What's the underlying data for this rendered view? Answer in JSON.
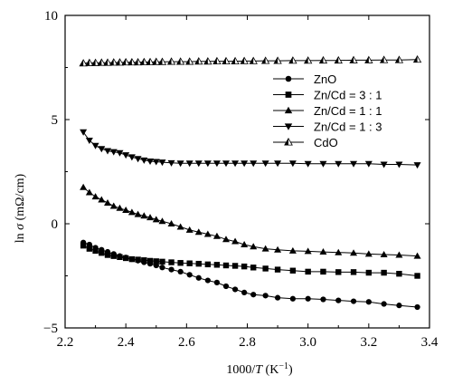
{
  "chart_data": {
    "type": "line",
    "ylabel": {
      "prefix": "ln ",
      "italic": "σ",
      "suffix": " (mΩ/cm)"
    },
    "xlabel": {
      "prefix": "1000/",
      "italic": "T",
      "suffix": " (K",
      "sup": "−1",
      "close": ")"
    },
    "xlim": [
      2.2,
      3.4
    ],
    "ylim": [
      -5,
      10
    ],
    "xticks": [
      2.2,
      2.4,
      2.6,
      2.8,
      3.0,
      3.2,
      3.4
    ],
    "xtick_labels": [
      "2.2",
      "2.4",
      "2.6",
      "2.8",
      "3.0",
      "3.2",
      "3.4"
    ],
    "yticks": [
      -5,
      0,
      5,
      10
    ],
    "ytick_labels": [
      "−5",
      "0",
      "5",
      "10"
    ],
    "grid": false,
    "legend_position": "upper-right",
    "colors": {
      "line": "#000000",
      "axes": "#000000",
      "background": "#ffffff"
    },
    "series": [
      {
        "name": "ZnO",
        "marker": "circle",
        "x": [
          2.26,
          2.28,
          2.3,
          2.32,
          2.34,
          2.36,
          2.38,
          2.4,
          2.42,
          2.44,
          2.46,
          2.48,
          2.5,
          2.52,
          2.55,
          2.58,
          2.61,
          2.64,
          2.67,
          2.7,
          2.73,
          2.76,
          2.79,
          2.82,
          2.86,
          2.9,
          2.95,
          3.0,
          3.05,
          3.1,
          3.15,
          3.2,
          3.25,
          3.3,
          3.36
        ],
        "y": [
          -0.9,
          -1.0,
          -1.15,
          -1.25,
          -1.35,
          -1.45,
          -1.55,
          -1.62,
          -1.7,
          -1.77,
          -1.85,
          -1.92,
          -2.0,
          -2.1,
          -2.2,
          -2.3,
          -2.45,
          -2.6,
          -2.72,
          -2.82,
          -3.0,
          -3.15,
          -3.3,
          -3.4,
          -3.45,
          -3.55,
          -3.6,
          -3.6,
          -3.63,
          -3.68,
          -3.72,
          -3.75,
          -3.85,
          -3.92,
          -4.0
        ]
      },
      {
        "name": "Zn/Cd = 3 : 1",
        "marker": "square",
        "x": [
          2.26,
          2.28,
          2.3,
          2.32,
          2.34,
          2.36,
          2.38,
          2.4,
          2.42,
          2.44,
          2.46,
          2.48,
          2.5,
          2.52,
          2.55,
          2.58,
          2.61,
          2.64,
          2.67,
          2.7,
          2.73,
          2.76,
          2.79,
          2.82,
          2.86,
          2.9,
          2.95,
          3.0,
          3.05,
          3.1,
          3.15,
          3.2,
          3.25,
          3.3,
          3.36
        ],
        "y": [
          -1.05,
          -1.2,
          -1.3,
          -1.4,
          -1.5,
          -1.55,
          -1.6,
          -1.65,
          -1.7,
          -1.72,
          -1.75,
          -1.78,
          -1.8,
          -1.82,
          -1.85,
          -1.88,
          -1.9,
          -1.92,
          -1.95,
          -1.97,
          -2.0,
          -2.02,
          -2.05,
          -2.1,
          -2.15,
          -2.2,
          -2.25,
          -2.3,
          -2.3,
          -2.32,
          -2.32,
          -2.35,
          -2.35,
          -2.4,
          -2.5
        ]
      },
      {
        "name": "Zn/Cd = 1 : 1",
        "marker": "triangle-up",
        "x": [
          2.26,
          2.28,
          2.3,
          2.32,
          2.34,
          2.36,
          2.38,
          2.4,
          2.42,
          2.44,
          2.46,
          2.48,
          2.5,
          2.52,
          2.55,
          2.58,
          2.61,
          2.64,
          2.67,
          2.7,
          2.73,
          2.76,
          2.79,
          2.82,
          2.86,
          2.9,
          2.95,
          3.0,
          3.05,
          3.1,
          3.15,
          3.2,
          3.25,
          3.3,
          3.36
        ],
        "y": [
          1.75,
          1.5,
          1.3,
          1.15,
          1.0,
          0.85,
          0.75,
          0.65,
          0.55,
          0.45,
          0.38,
          0.3,
          0.2,
          0.12,
          0.0,
          -0.15,
          -0.3,
          -0.4,
          -0.5,
          -0.6,
          -0.75,
          -0.85,
          -1.0,
          -1.1,
          -1.2,
          -1.25,
          -1.3,
          -1.32,
          -1.35,
          -1.38,
          -1.4,
          -1.45,
          -1.48,
          -1.5,
          -1.55
        ]
      },
      {
        "name": "Zn/Cd = 1 : 3",
        "marker": "triangle-down",
        "x": [
          2.26,
          2.28,
          2.3,
          2.32,
          2.34,
          2.36,
          2.38,
          2.4,
          2.42,
          2.44,
          2.46,
          2.48,
          2.5,
          2.52,
          2.55,
          2.58,
          2.61,
          2.64,
          2.67,
          2.7,
          2.73,
          2.76,
          2.79,
          2.82,
          2.86,
          2.9,
          2.95,
          3.0,
          3.05,
          3.1,
          3.15,
          3.2,
          3.25,
          3.3,
          3.36
        ],
        "y": [
          4.4,
          4.0,
          3.75,
          3.6,
          3.5,
          3.45,
          3.4,
          3.3,
          3.2,
          3.12,
          3.05,
          3.0,
          2.98,
          2.95,
          2.92,
          2.9,
          2.9,
          2.9,
          2.9,
          2.9,
          2.9,
          2.9,
          2.9,
          2.9,
          2.9,
          2.9,
          2.9,
          2.88,
          2.88,
          2.88,
          2.88,
          2.88,
          2.85,
          2.85,
          2.82
        ]
      },
      {
        "name": "CdO",
        "marker": "half-triangle",
        "x": [
          2.26,
          2.28,
          2.3,
          2.32,
          2.34,
          2.36,
          2.38,
          2.4,
          2.42,
          2.44,
          2.46,
          2.48,
          2.5,
          2.52,
          2.55,
          2.58,
          2.61,
          2.64,
          2.67,
          2.7,
          2.73,
          2.76,
          2.79,
          2.82,
          2.86,
          2.9,
          2.95,
          3.0,
          3.05,
          3.1,
          3.15,
          3.2,
          3.25,
          3.3,
          3.36
        ],
        "y": [
          7.7,
          7.72,
          7.72,
          7.73,
          7.73,
          7.74,
          7.74,
          7.75,
          7.75,
          7.75,
          7.76,
          7.76,
          7.77,
          7.77,
          7.78,
          7.78,
          7.78,
          7.79,
          7.79,
          7.8,
          7.8,
          7.8,
          7.81,
          7.81,
          7.82,
          7.82,
          7.83,
          7.83,
          7.84,
          7.84,
          7.85,
          7.85,
          7.86,
          7.86,
          7.88
        ]
      }
    ]
  }
}
